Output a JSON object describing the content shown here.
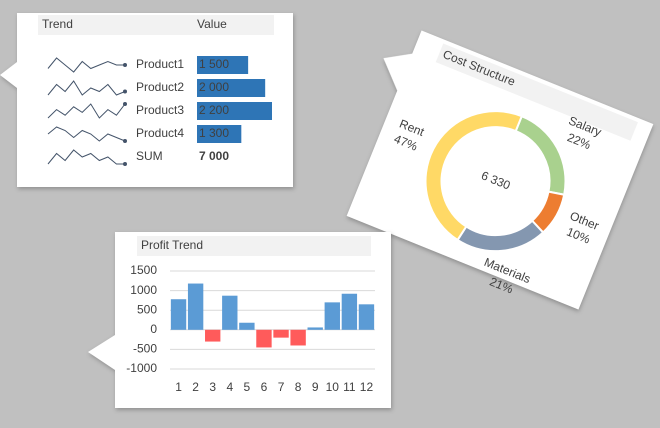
{
  "chart_data": [
    {
      "type": "table",
      "columns": [
        "Trend",
        "Value"
      ],
      "categories": [
        "Product1",
        "Product2",
        "Product3",
        "Product4"
      ],
      "values": [
        1500,
        2000,
        2200,
        1300
      ],
      "value_labels": [
        "1 500",
        "2 000",
        "2 200",
        "1 300"
      ],
      "trends": [
        [
          5,
          8,
          6,
          4,
          7,
          5,
          6,
          7,
          6,
          6
        ],
        [
          4,
          7,
          5,
          8,
          4,
          6,
          5,
          7,
          4,
          5
        ],
        [
          3,
          6,
          4,
          7,
          5,
          8,
          3,
          6,
          4,
          8
        ],
        [
          6,
          8,
          7,
          5,
          7,
          6,
          4,
          6,
          5,
          4
        ]
      ],
      "total_label": "SUM",
      "total": 7000,
      "total_value_label": "7 000",
      "total_trend": [
        3,
        6,
        4,
        7,
        5,
        6,
        4,
        5,
        3,
        3
      ],
      "color": "#2e75b6"
    },
    {
      "type": "donut",
      "title": "Cost Structure",
      "categories": [
        "Salary",
        "Other",
        "Materials",
        "Rent"
      ],
      "values": [
        22,
        10,
        21,
        47
      ],
      "value_labels": [
        "22%",
        "10%",
        "21%",
        "47%"
      ],
      "colors": [
        "#a9d18e",
        "#ed7d31",
        "#8497b0",
        "#ffd966"
      ],
      "center_label": "6 330"
    },
    {
      "type": "bar",
      "title": "Profit Trend",
      "categories": [
        "1",
        "2",
        "3",
        "4",
        "5",
        "6",
        "7",
        "8",
        "9",
        "10",
        "11",
        "12"
      ],
      "values": [
        780,
        1180,
        -300,
        870,
        180,
        -450,
        -200,
        -400,
        60,
        700,
        920,
        650
      ],
      "color": "#5b9bd5",
      "negative_color": "#ff5b5b",
      "ylim": [
        -1000,
        1500
      ],
      "yticks": [
        -1000,
        -500,
        0,
        500,
        1000,
        1500
      ],
      "grid": true
    }
  ]
}
